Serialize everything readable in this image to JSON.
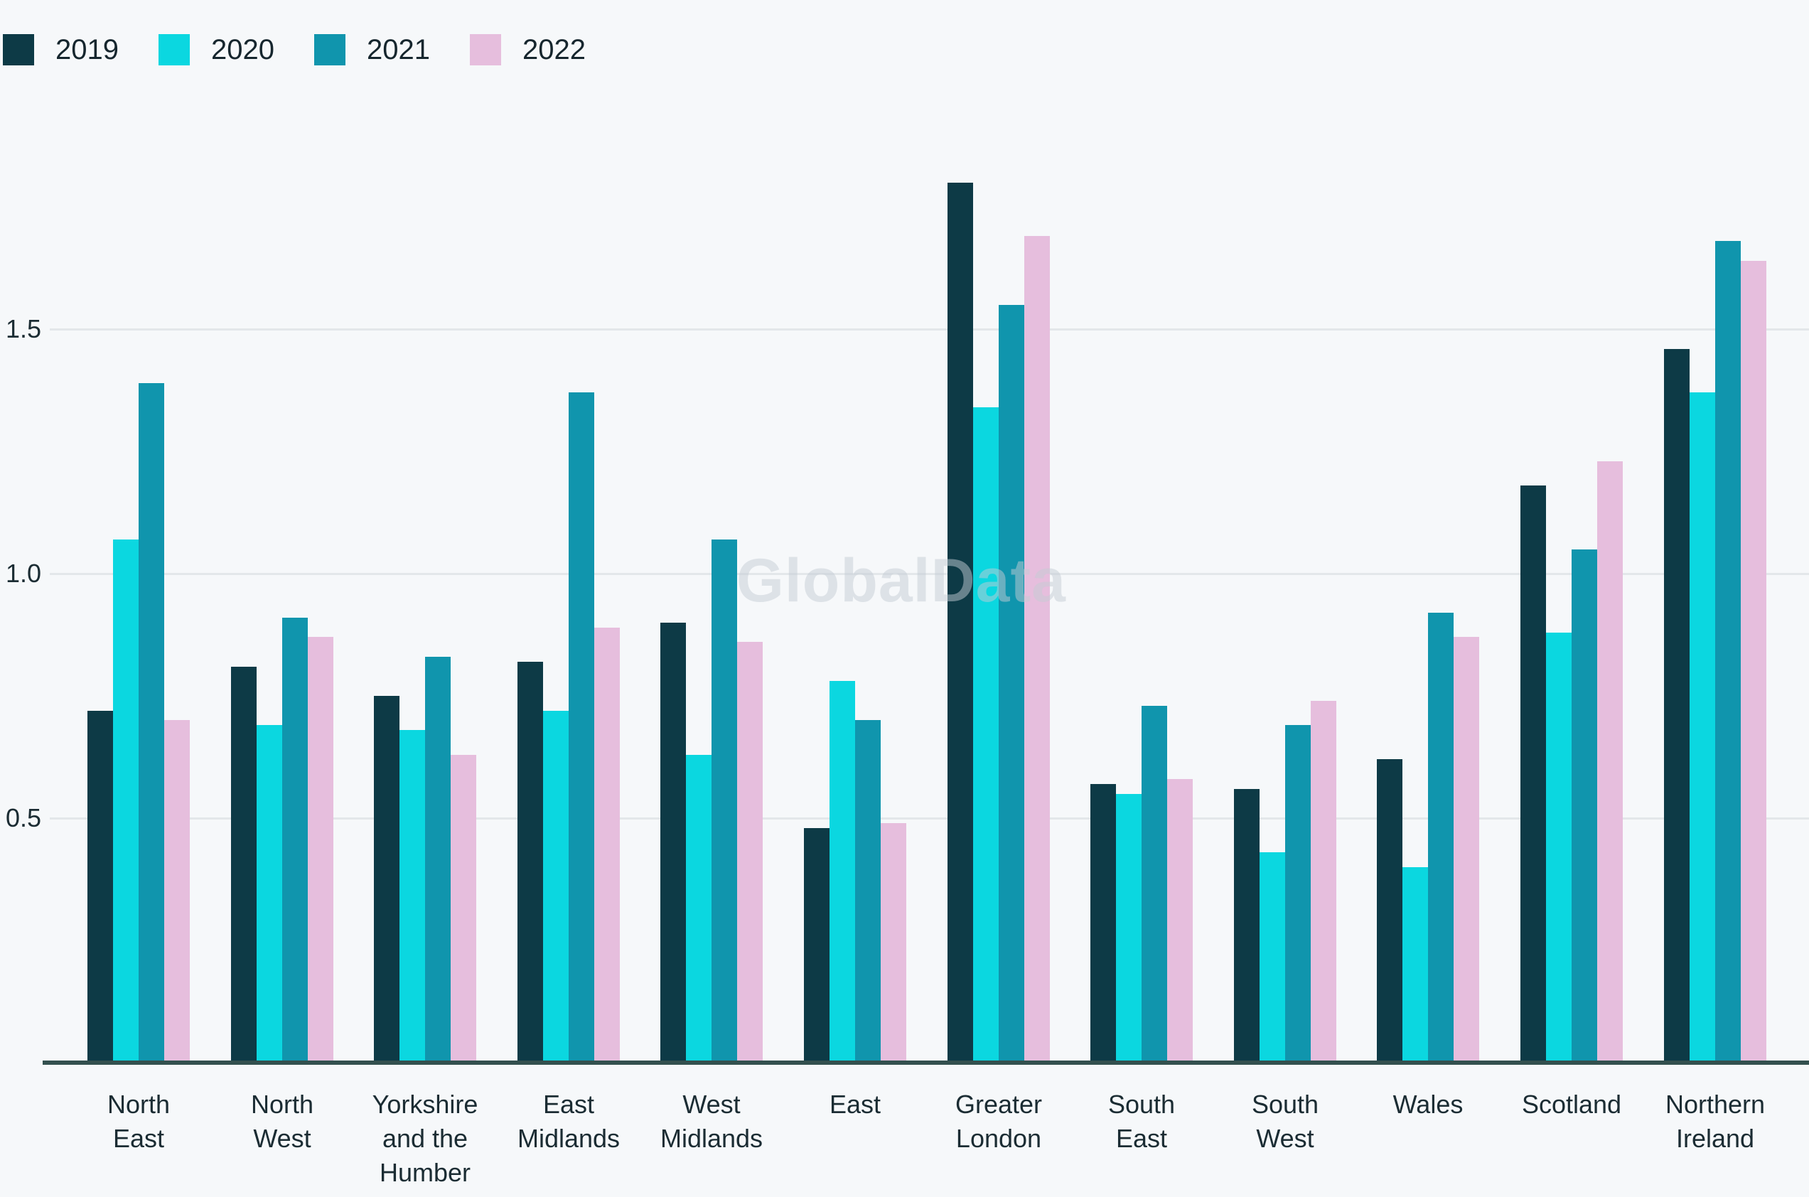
{
  "watermark": "GlobalData",
  "colors": {
    "background": "#f6f8fa",
    "gridline": "#e3e7ea",
    "axis_line": "#33504e",
    "text": "#1b2c33"
  },
  "chart_data": {
    "type": "bar",
    "title": "",
    "xlabel": "",
    "ylabel": "",
    "ylim": [
      0,
      1.9
    ],
    "grid": "horizontal",
    "legend_position": "top-left",
    "yticks": [
      {
        "value": 0.5,
        "label": "0.5"
      },
      {
        "value": 1.0,
        "label": "1.0"
      },
      {
        "value": 1.5,
        "label": "1.5"
      }
    ],
    "categories": [
      "North\nEast",
      "North\nWest",
      "Yorkshire\nand the\nHumber",
      "East\nMidlands",
      "West\nMidlands",
      "East",
      "Greater\nLondon",
      "South\nEast",
      "South\nWest",
      "Wales",
      "Scotland",
      "Northern\nIreland"
    ],
    "series": [
      {
        "name": "2019",
        "color": "#0d3a46",
        "values": [
          0.72,
          0.81,
          0.75,
          0.82,
          0.9,
          0.48,
          1.8,
          0.57,
          0.56,
          0.62,
          1.18,
          1.46
        ]
      },
      {
        "name": "2020",
        "color": "#0bd7e0",
        "values": [
          1.07,
          0.69,
          0.68,
          0.72,
          0.63,
          0.78,
          1.34,
          0.55,
          0.43,
          0.4,
          0.88,
          1.37
        ]
      },
      {
        "name": "2021",
        "color": "#1095ad",
        "values": [
          1.39,
          0.91,
          0.83,
          1.37,
          1.07,
          0.7,
          1.55,
          0.73,
          0.69,
          0.92,
          1.05,
          1.68
        ]
      },
      {
        "name": "2022",
        "color": "#e6bedd",
        "values": [
          0.7,
          0.87,
          0.63,
          0.89,
          0.86,
          0.49,
          1.69,
          0.58,
          0.74,
          0.87,
          1.23,
          1.64
        ]
      }
    ]
  }
}
